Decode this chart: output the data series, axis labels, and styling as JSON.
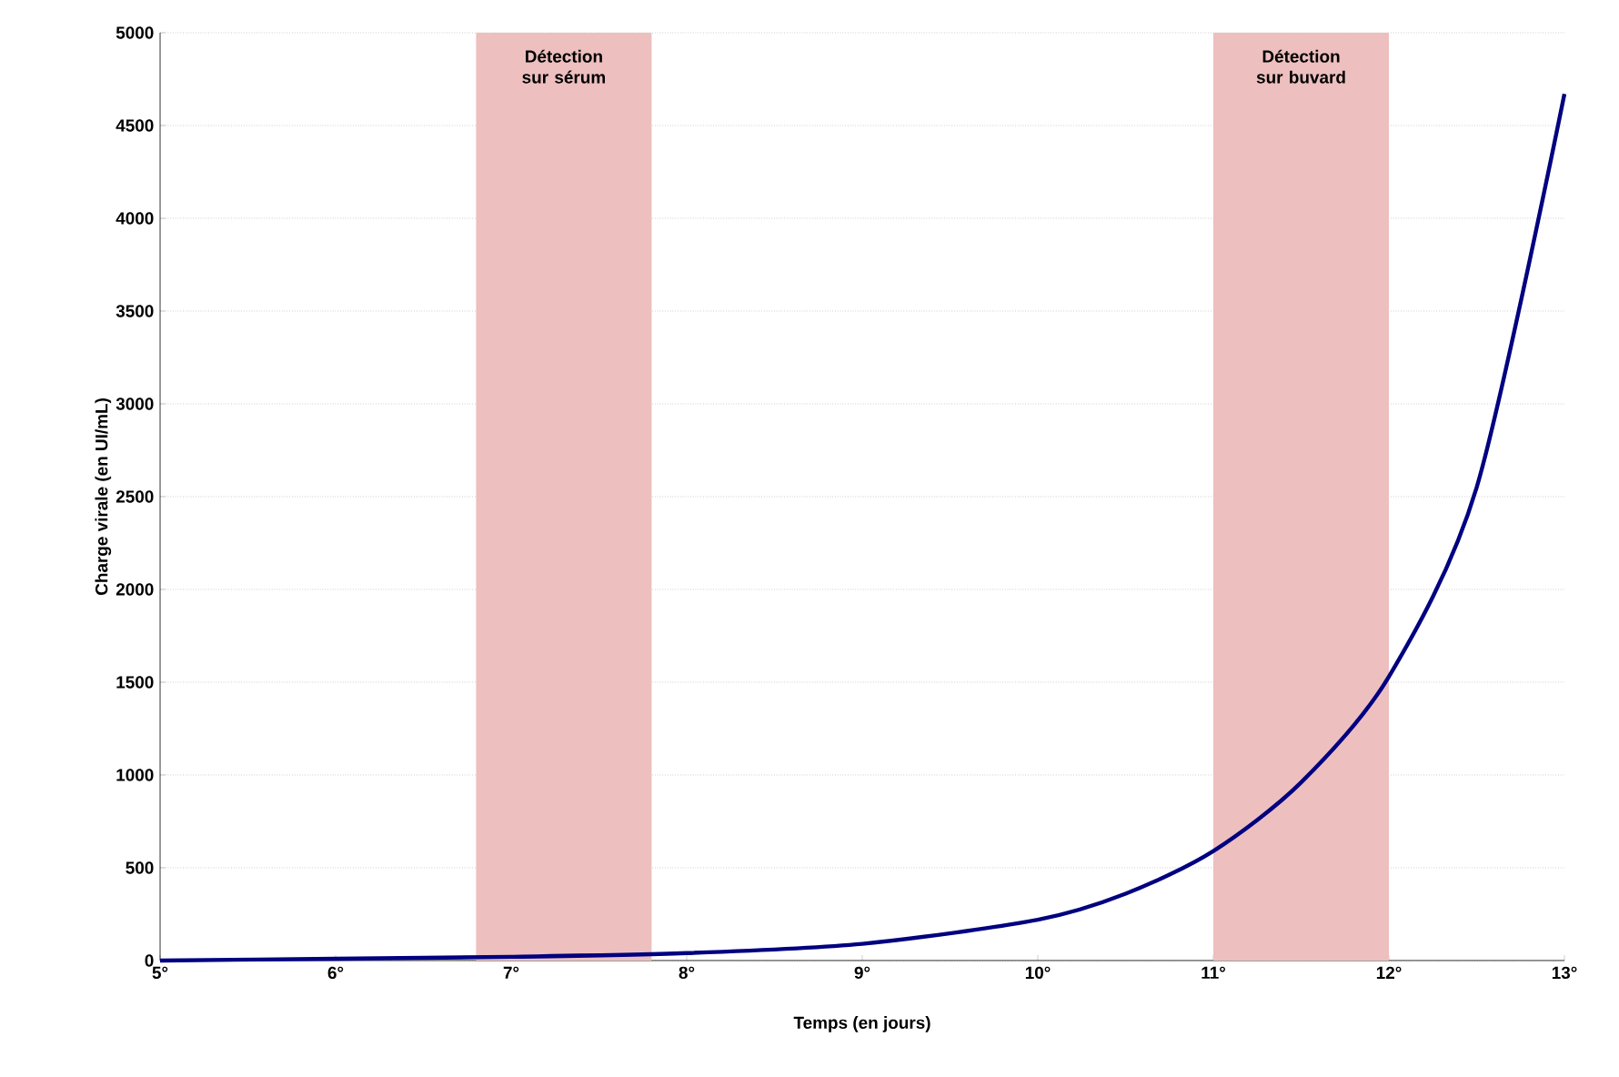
{
  "chart_data": {
    "type": "line",
    "xlabel": "Temps (en jours)",
    "ylabel": "Charge virale (en UI/mL)",
    "x": [
      5,
      6,
      7,
      8,
      9,
      10,
      10.5,
      11,
      11.5,
      12,
      12.5,
      13
    ],
    "series": [
      {
        "color": "#000080",
        "values": [
          0,
          10,
          20,
          40,
          90,
          220,
          360,
          590,
          960,
          1530,
          2550,
          4670
        ]
      }
    ],
    "xlim": [
      5,
      13
    ],
    "ylim": [
      0,
      5000
    ],
    "xticks": [
      {
        "value": 5,
        "label": "5°"
      },
      {
        "value": 6,
        "label": "6°"
      },
      {
        "value": 7,
        "label": "7°"
      },
      {
        "value": 8,
        "label": "8°"
      },
      {
        "value": 9,
        "label": "9°"
      },
      {
        "value": 10,
        "label": "10°"
      },
      {
        "value": 11,
        "label": "11°"
      },
      {
        "value": 12,
        "label": "12°"
      },
      {
        "value": 13,
        "label": "13°"
      }
    ],
    "yticks": [
      0,
      500,
      1000,
      1500,
      2000,
      2500,
      3000,
      3500,
      4000,
      4500,
      5000
    ],
    "grid": "y",
    "marker": "none",
    "line_style": "solid",
    "bands": [
      {
        "axis": "x",
        "from": 6.8,
        "to": 7.8,
        "label": "Détection sur sérum",
        "color": "#edbfbf"
      },
      {
        "axis": "x",
        "from": 11,
        "to": 12,
        "label": "Détection sur buvard",
        "color": "#edbfbf"
      }
    ]
  }
}
